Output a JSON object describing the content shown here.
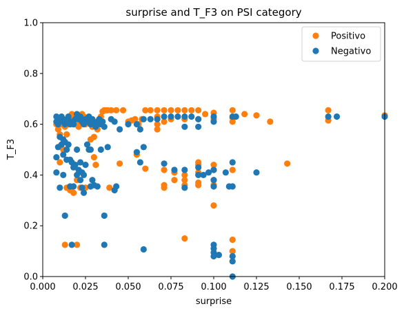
{
  "chart_data": {
    "type": "scatter",
    "title": "surprise and T_F3 on PSI category",
    "xlabel": "surprise",
    "ylabel": "T_F3",
    "xlim": [
      0,
      0.2
    ],
    "ylim": [
      0,
      1
    ],
    "xticks": [
      0,
      0.025,
      0.05,
      0.075,
      0.1,
      0.125,
      0.15,
      0.175,
      0.2
    ],
    "xtick_labels": [
      "0.000",
      "0.025",
      "0.050",
      "0.075",
      "0.100",
      "0.125",
      "0.150",
      "0.175",
      "0.200"
    ],
    "yticks": [
      0,
      0.2,
      0.4,
      0.6,
      0.8,
      1.0
    ],
    "ytick_labels": [
      "0.0",
      "0.2",
      "0.4",
      "0.6",
      "0.8",
      "1.0"
    ],
    "grid": false,
    "legend_position": "top-right",
    "series": [
      {
        "name": "Positivo",
        "color": "#ff7f0e",
        "points": [
          [
            0.008,
            0.6
          ],
          [
            0.009,
            0.58
          ],
          [
            0.01,
            0.56
          ],
          [
            0.011,
            0.6
          ],
          [
            0.012,
            0.62
          ],
          [
            0.013,
            0.59
          ],
          [
            0.014,
            0.56
          ],
          [
            0.015,
            0.6
          ],
          [
            0.016,
            0.62
          ],
          [
            0.017,
            0.64
          ],
          [
            0.018,
            0.61
          ],
          [
            0.019,
            0.6
          ],
          [
            0.02,
            0.63
          ],
          [
            0.021,
            0.59
          ],
          [
            0.022,
            0.6
          ],
          [
            0.023,
            0.64
          ],
          [
            0.024,
            0.63
          ],
          [
            0.025,
            0.6
          ],
          [
            0.026,
            0.61
          ],
          [
            0.027,
            0.62
          ],
          [
            0.028,
            0.6
          ],
          [
            0.029,
            0.59
          ],
          [
            0.03,
            0.55
          ],
          [
            0.031,
            0.6
          ],
          [
            0.032,
            0.58
          ],
          [
            0.033,
            0.6
          ],
          [
            0.034,
            0.63
          ],
          [
            0.035,
            0.65
          ],
          [
            0.036,
            0.655
          ],
          [
            0.037,
            0.655
          ],
          [
            0.038,
            0.655
          ],
          [
            0.04,
            0.655
          ],
          [
            0.043,
            0.655
          ],
          [
            0.047,
            0.655
          ],
          [
            0.05,
            0.61
          ],
          [
            0.052,
            0.615
          ],
          [
            0.054,
            0.62
          ],
          [
            0.056,
            0.6
          ],
          [
            0.058,
            0.62
          ],
          [
            0.06,
            0.655
          ],
          [
            0.063,
            0.655
          ],
          [
            0.067,
            0.655
          ],
          [
            0.067,
            0.63
          ],
          [
            0.067,
            0.6
          ],
          [
            0.067,
            0.58
          ],
          [
            0.071,
            0.655
          ],
          [
            0.071,
            0.61
          ],
          [
            0.071,
            0.42
          ],
          [
            0.071,
            0.36
          ],
          [
            0.071,
            0.35
          ],
          [
            0.075,
            0.655
          ],
          [
            0.075,
            0.62
          ],
          [
            0.077,
            0.41
          ],
          [
            0.077,
            0.38
          ],
          [
            0.079,
            0.655
          ],
          [
            0.083,
            0.655
          ],
          [
            0.083,
            0.62
          ],
          [
            0.083,
            0.4
          ],
          [
            0.083,
            0.38
          ],
          [
            0.083,
            0.36
          ],
          [
            0.083,
            0.15
          ],
          [
            0.087,
            0.655
          ],
          [
            0.091,
            0.655
          ],
          [
            0.091,
            0.62
          ],
          [
            0.091,
            0.45
          ],
          [
            0.091,
            0.44
          ],
          [
            0.091,
            0.41
          ],
          [
            0.091,
            0.37
          ],
          [
            0.091,
            0.36
          ],
          [
            0.095,
            0.64
          ],
          [
            0.1,
            0.645
          ],
          [
            0.1,
            0.62
          ],
          [
            0.1,
            0.44
          ],
          [
            0.1,
            0.42
          ],
          [
            0.1,
            0.38
          ],
          [
            0.1,
            0.36
          ],
          [
            0.1,
            0.28
          ],
          [
            0.111,
            0.655
          ],
          [
            0.111,
            0.625
          ],
          [
            0.111,
            0.61
          ],
          [
            0.111,
            0.42
          ],
          [
            0.111,
            0.145
          ],
          [
            0.111,
            0.1
          ],
          [
            0.118,
            0.64
          ],
          [
            0.125,
            0.635
          ],
          [
            0.133,
            0.61
          ],
          [
            0.143,
            0.445
          ],
          [
            0.167,
            0.655
          ],
          [
            0.167,
            0.615
          ],
          [
            0.2,
            0.635
          ],
          [
            0.01,
            0.45
          ],
          [
            0.012,
            0.5
          ],
          [
            0.014,
            0.35
          ],
          [
            0.016,
            0.34
          ],
          [
            0.018,
            0.33
          ],
          [
            0.02,
            0.38
          ],
          [
            0.022,
            0.35
          ],
          [
            0.025,
            0.35
          ],
          [
            0.028,
            0.54
          ],
          [
            0.03,
            0.47
          ],
          [
            0.031,
            0.44
          ],
          [
            0.039,
            0.35
          ],
          [
            0.045,
            0.445
          ],
          [
            0.055,
            0.48
          ],
          [
            0.06,
            0.425
          ],
          [
            0.013,
            0.125
          ],
          [
            0.02,
            0.125
          ]
        ]
      },
      {
        "name": "Negativo",
        "color": "#1f77b4",
        "points": [
          [
            0.008,
            0.63
          ],
          [
            0.008,
            0.61
          ],
          [
            0.009,
            0.6
          ],
          [
            0.01,
            0.62
          ],
          [
            0.011,
            0.63
          ],
          [
            0.012,
            0.61
          ],
          [
            0.013,
            0.6
          ],
          [
            0.014,
            0.62
          ],
          [
            0.015,
            0.63
          ],
          [
            0.016,
            0.6
          ],
          [
            0.017,
            0.61
          ],
          [
            0.018,
            0.6
          ],
          [
            0.019,
            0.62
          ],
          [
            0.02,
            0.64
          ],
          [
            0.021,
            0.62
          ],
          [
            0.022,
            0.63
          ],
          [
            0.023,
            0.61
          ],
          [
            0.024,
            0.6
          ],
          [
            0.025,
            0.62
          ],
          [
            0.026,
            0.61
          ],
          [
            0.027,
            0.63
          ],
          [
            0.028,
            0.6
          ],
          [
            0.029,
            0.62
          ],
          [
            0.03,
            0.6
          ],
          [
            0.031,
            0.59
          ],
          [
            0.032,
            0.61
          ],
          [
            0.033,
            0.62
          ],
          [
            0.034,
            0.6
          ],
          [
            0.035,
            0.61
          ],
          [
            0.036,
            0.59
          ],
          [
            0.04,
            0.62
          ],
          [
            0.042,
            0.61
          ],
          [
            0.045,
            0.58
          ],
          [
            0.05,
            0.6
          ],
          [
            0.055,
            0.6
          ],
          [
            0.057,
            0.58
          ],
          [
            0.059,
            0.62
          ],
          [
            0.063,
            0.62
          ],
          [
            0.067,
            0.62
          ],
          [
            0.071,
            0.63
          ],
          [
            0.071,
            0.445
          ],
          [
            0.075,
            0.63
          ],
          [
            0.077,
            0.42
          ],
          [
            0.079,
            0.63
          ],
          [
            0.083,
            0.63
          ],
          [
            0.083,
            0.59
          ],
          [
            0.083,
            0.42
          ],
          [
            0.083,
            0.35
          ],
          [
            0.087,
            0.63
          ],
          [
            0.091,
            0.62
          ],
          [
            0.091,
            0.59
          ],
          [
            0.091,
            0.43
          ],
          [
            0.091,
            0.4
          ],
          [
            0.094,
            0.4
          ],
          [
            0.097,
            0.41
          ],
          [
            0.1,
            0.63
          ],
          [
            0.1,
            0.61
          ],
          [
            0.1,
            0.42
          ],
          [
            0.1,
            0.38
          ],
          [
            0.1,
            0.355
          ],
          [
            0.1,
            0.125
          ],
          [
            0.1,
            0.11
          ],
          [
            0.1,
            0.095
          ],
          [
            0.1,
            0.08
          ],
          [
            0.103,
            0.085
          ],
          [
            0.107,
            0.41
          ],
          [
            0.109,
            0.355
          ],
          [
            0.111,
            0.355
          ],
          [
            0.111,
            0.45
          ],
          [
            0.111,
            0.63
          ],
          [
            0.111,
            0.08
          ],
          [
            0.111,
            0.06
          ],
          [
            0.111,
            0.0
          ],
          [
            0.113,
            0.63
          ],
          [
            0.125,
            0.41
          ],
          [
            0.167,
            0.63
          ],
          [
            0.172,
            0.63
          ],
          [
            0.2,
            0.63
          ],
          [
            0.008,
            0.47
          ],
          [
            0.009,
            0.51
          ],
          [
            0.01,
            0.55
          ],
          [
            0.011,
            0.52
          ],
          [
            0.012,
            0.54
          ],
          [
            0.012,
            0.48
          ],
          [
            0.013,
            0.53
          ],
          [
            0.014,
            0.5
          ],
          [
            0.015,
            0.52
          ],
          [
            0.016,
            0.46
          ],
          [
            0.017,
            0.45
          ],
          [
            0.018,
            0.43
          ],
          [
            0.019,
            0.44
          ],
          [
            0.02,
            0.5
          ],
          [
            0.021,
            0.42
          ],
          [
            0.022,
            0.45
          ],
          [
            0.023,
            0.41
          ],
          [
            0.024,
            0.4
          ],
          [
            0.025,
            0.44
          ],
          [
            0.026,
            0.52
          ],
          [
            0.027,
            0.5
          ],
          [
            0.028,
            0.5
          ],
          [
            0.029,
            0.38
          ],
          [
            0.03,
            0.36
          ],
          [
            0.032,
            0.355
          ],
          [
            0.034,
            0.5
          ],
          [
            0.038,
            0.51
          ],
          [
            0.042,
            0.34
          ],
          [
            0.043,
            0.355
          ],
          [
            0.055,
            0.49
          ],
          [
            0.057,
            0.45
          ],
          [
            0.059,
            0.51
          ],
          [
            0.008,
            0.41
          ],
          [
            0.01,
            0.35
          ],
          [
            0.012,
            0.4
          ],
          [
            0.014,
            0.46
          ],
          [
            0.016,
            0.355
          ],
          [
            0.018,
            0.355
          ],
          [
            0.02,
            0.4
          ],
          [
            0.022,
            0.38
          ],
          [
            0.023,
            0.35
          ],
          [
            0.024,
            0.33
          ],
          [
            0.028,
            0.355
          ],
          [
            0.013,
            0.24
          ],
          [
            0.036,
            0.24
          ],
          [
            0.036,
            0.125
          ],
          [
            0.017,
            0.125
          ],
          [
            0.059,
            0.107
          ]
        ]
      }
    ]
  }
}
